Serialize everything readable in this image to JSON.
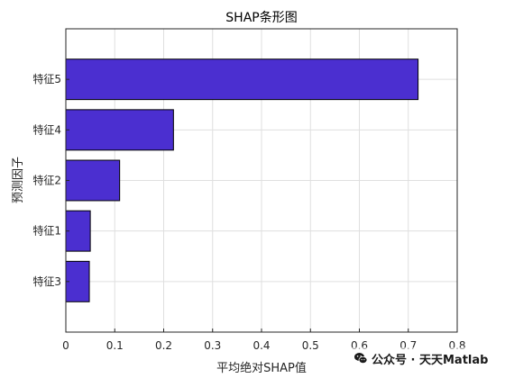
{
  "chart_data": {
    "type": "bar",
    "orientation": "horizontal",
    "title": "SHAP条形图",
    "xlabel": "平均绝对SHAP值",
    "ylabel": "预测因子",
    "categories": [
      "特征5",
      "特征4",
      "特征2",
      "特征1",
      "特征3"
    ],
    "values": [
      0.72,
      0.22,
      0.11,
      0.05,
      0.048
    ],
    "xlim": [
      0,
      0.8
    ],
    "xticks": [
      "0",
      "0.1",
      "0.2",
      "0.3",
      "0.4",
      "0.5",
      "0.6",
      "0.7",
      "0.8"
    ],
    "grid": true,
    "legend": "none",
    "bar_color": "#4b2fd0",
    "bar_edge_color": "#000000"
  },
  "watermark": {
    "text": "公众号 · 天天Matlab",
    "icon": "wechat-icon"
  }
}
